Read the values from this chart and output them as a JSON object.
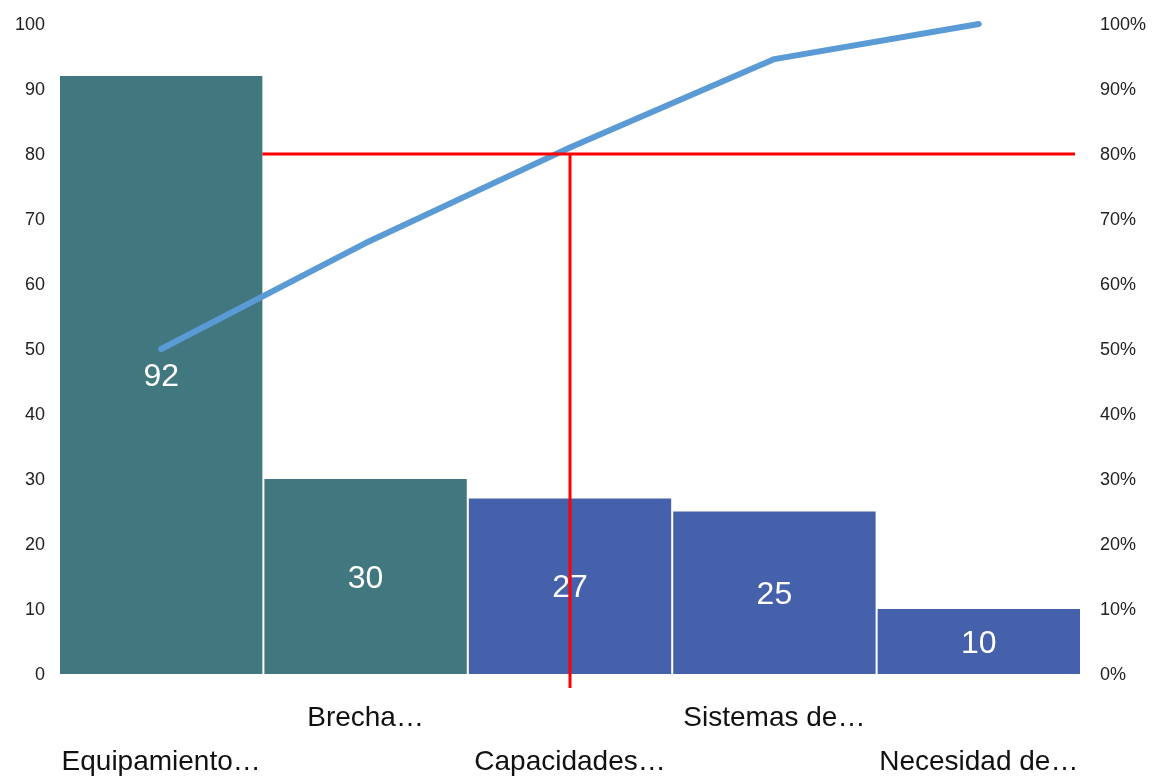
{
  "chart_data": {
    "type": "bar",
    "categories": [
      "Equipamiento…",
      "Brecha…",
      "Capacidades…",
      "Sistemas de…",
      "Necesidad de…"
    ],
    "series": [
      {
        "values": [
          92,
          30,
          27,
          25,
          10
        ],
        "value_labels": [
          "92",
          "30",
          "27",
          "25",
          "10"
        ],
        "colors": [
          "#41777f",
          "#41777f",
          "#4561ab",
          "#4561ab",
          "#4561ab"
        ]
      },
      {
        "type": "line",
        "color": "#5b9bd5",
        "values": [
          50,
          66.3,
          81,
          94.6,
          100
        ]
      }
    ],
    "ylim": [
      0,
      100
    ],
    "yticks": [
      0,
      10,
      20,
      30,
      40,
      50,
      60,
      70,
      80,
      90,
      100
    ],
    "y2lim": [
      0,
      100
    ],
    "y2ticks": [
      {
        "value": 0,
        "label": "0%"
      },
      {
        "value": 10,
        "label": "10%"
      },
      {
        "value": 20,
        "label": "20%"
      },
      {
        "value": 30,
        "label": "30%"
      },
      {
        "value": 40,
        "label": "40%"
      },
      {
        "value": 50,
        "label": "50%"
      },
      {
        "value": 60,
        "label": "60%"
      },
      {
        "value": 70,
        "label": "70%"
      },
      {
        "value": 80,
        "label": "80%"
      },
      {
        "value": 90,
        "label": "90%"
      },
      {
        "value": 100,
        "label": "100%"
      }
    ],
    "ref_lines": [
      {
        "axis": "y2",
        "value": 80,
        "color": "#ff0000"
      },
      {
        "axis": "x",
        "value": "Capacidades…",
        "color": "#ff0000"
      }
    ],
    "grid": false,
    "marker": "none",
    "line_style": "solid"
  }
}
